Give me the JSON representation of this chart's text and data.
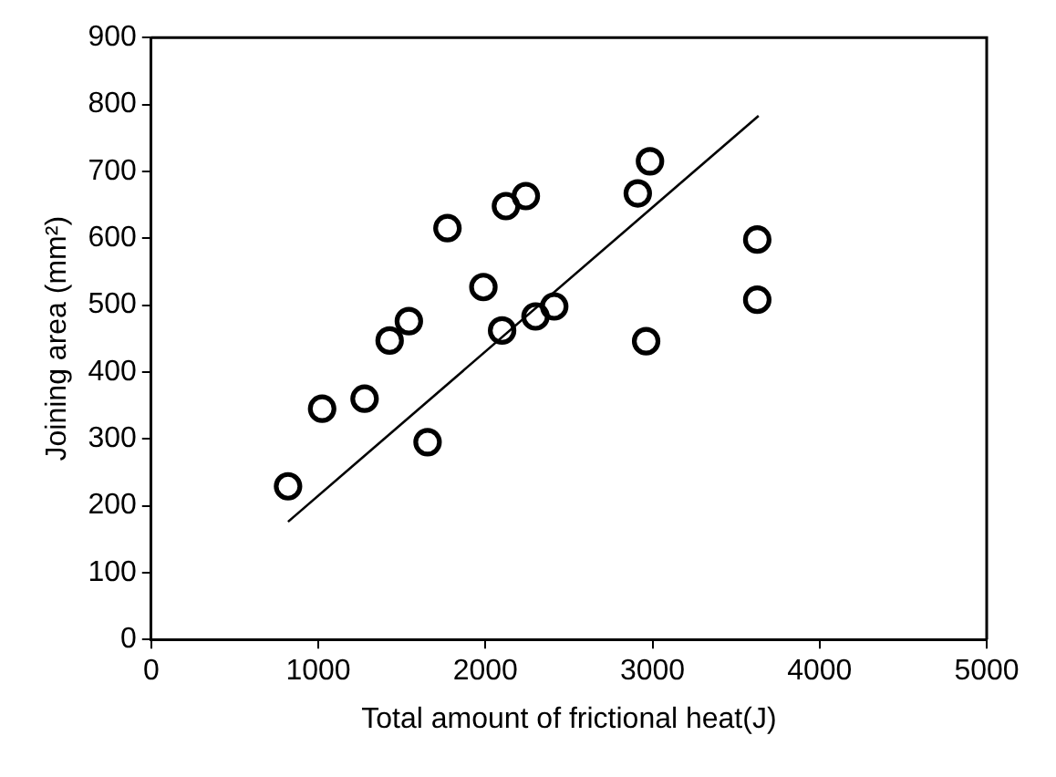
{
  "chart_data": {
    "type": "scatter",
    "xlabel": "Total amount of frictional heat(J)",
    "ylabel": "Joining area (mm²)",
    "xlim": [
      0,
      5000
    ],
    "xticks": [
      0,
      1000,
      2000,
      3000,
      4000,
      5000
    ],
    "ylim": [
      0,
      900
    ],
    "yticks": [
      0,
      100,
      200,
      300,
      400,
      500,
      600,
      700,
      800,
      900
    ],
    "grid": false,
    "legend": false,
    "marker": "circle",
    "series": [
      {
        "type": "scatter",
        "color": "#000000",
        "x": [
          819,
          1023,
          1277,
          1427,
          1542,
          1654,
          1773,
          1988,
          2100,
          2123,
          2242,
          2300,
          2412,
          2912,
          2985,
          2962,
          3627,
          3627
        ],
        "values": [
          229,
          345,
          360,
          447,
          476,
          295,
          615,
          527,
          462,
          648,
          663,
          483,
          498,
          667,
          715,
          446,
          598,
          508
        ]
      },
      {
        "type": "line",
        "color": "#000000",
        "marker": "none",
        "line_style": "solid",
        "x": [
          819,
          3635
        ],
        "values": [
          176,
          783
        ]
      }
    ]
  }
}
